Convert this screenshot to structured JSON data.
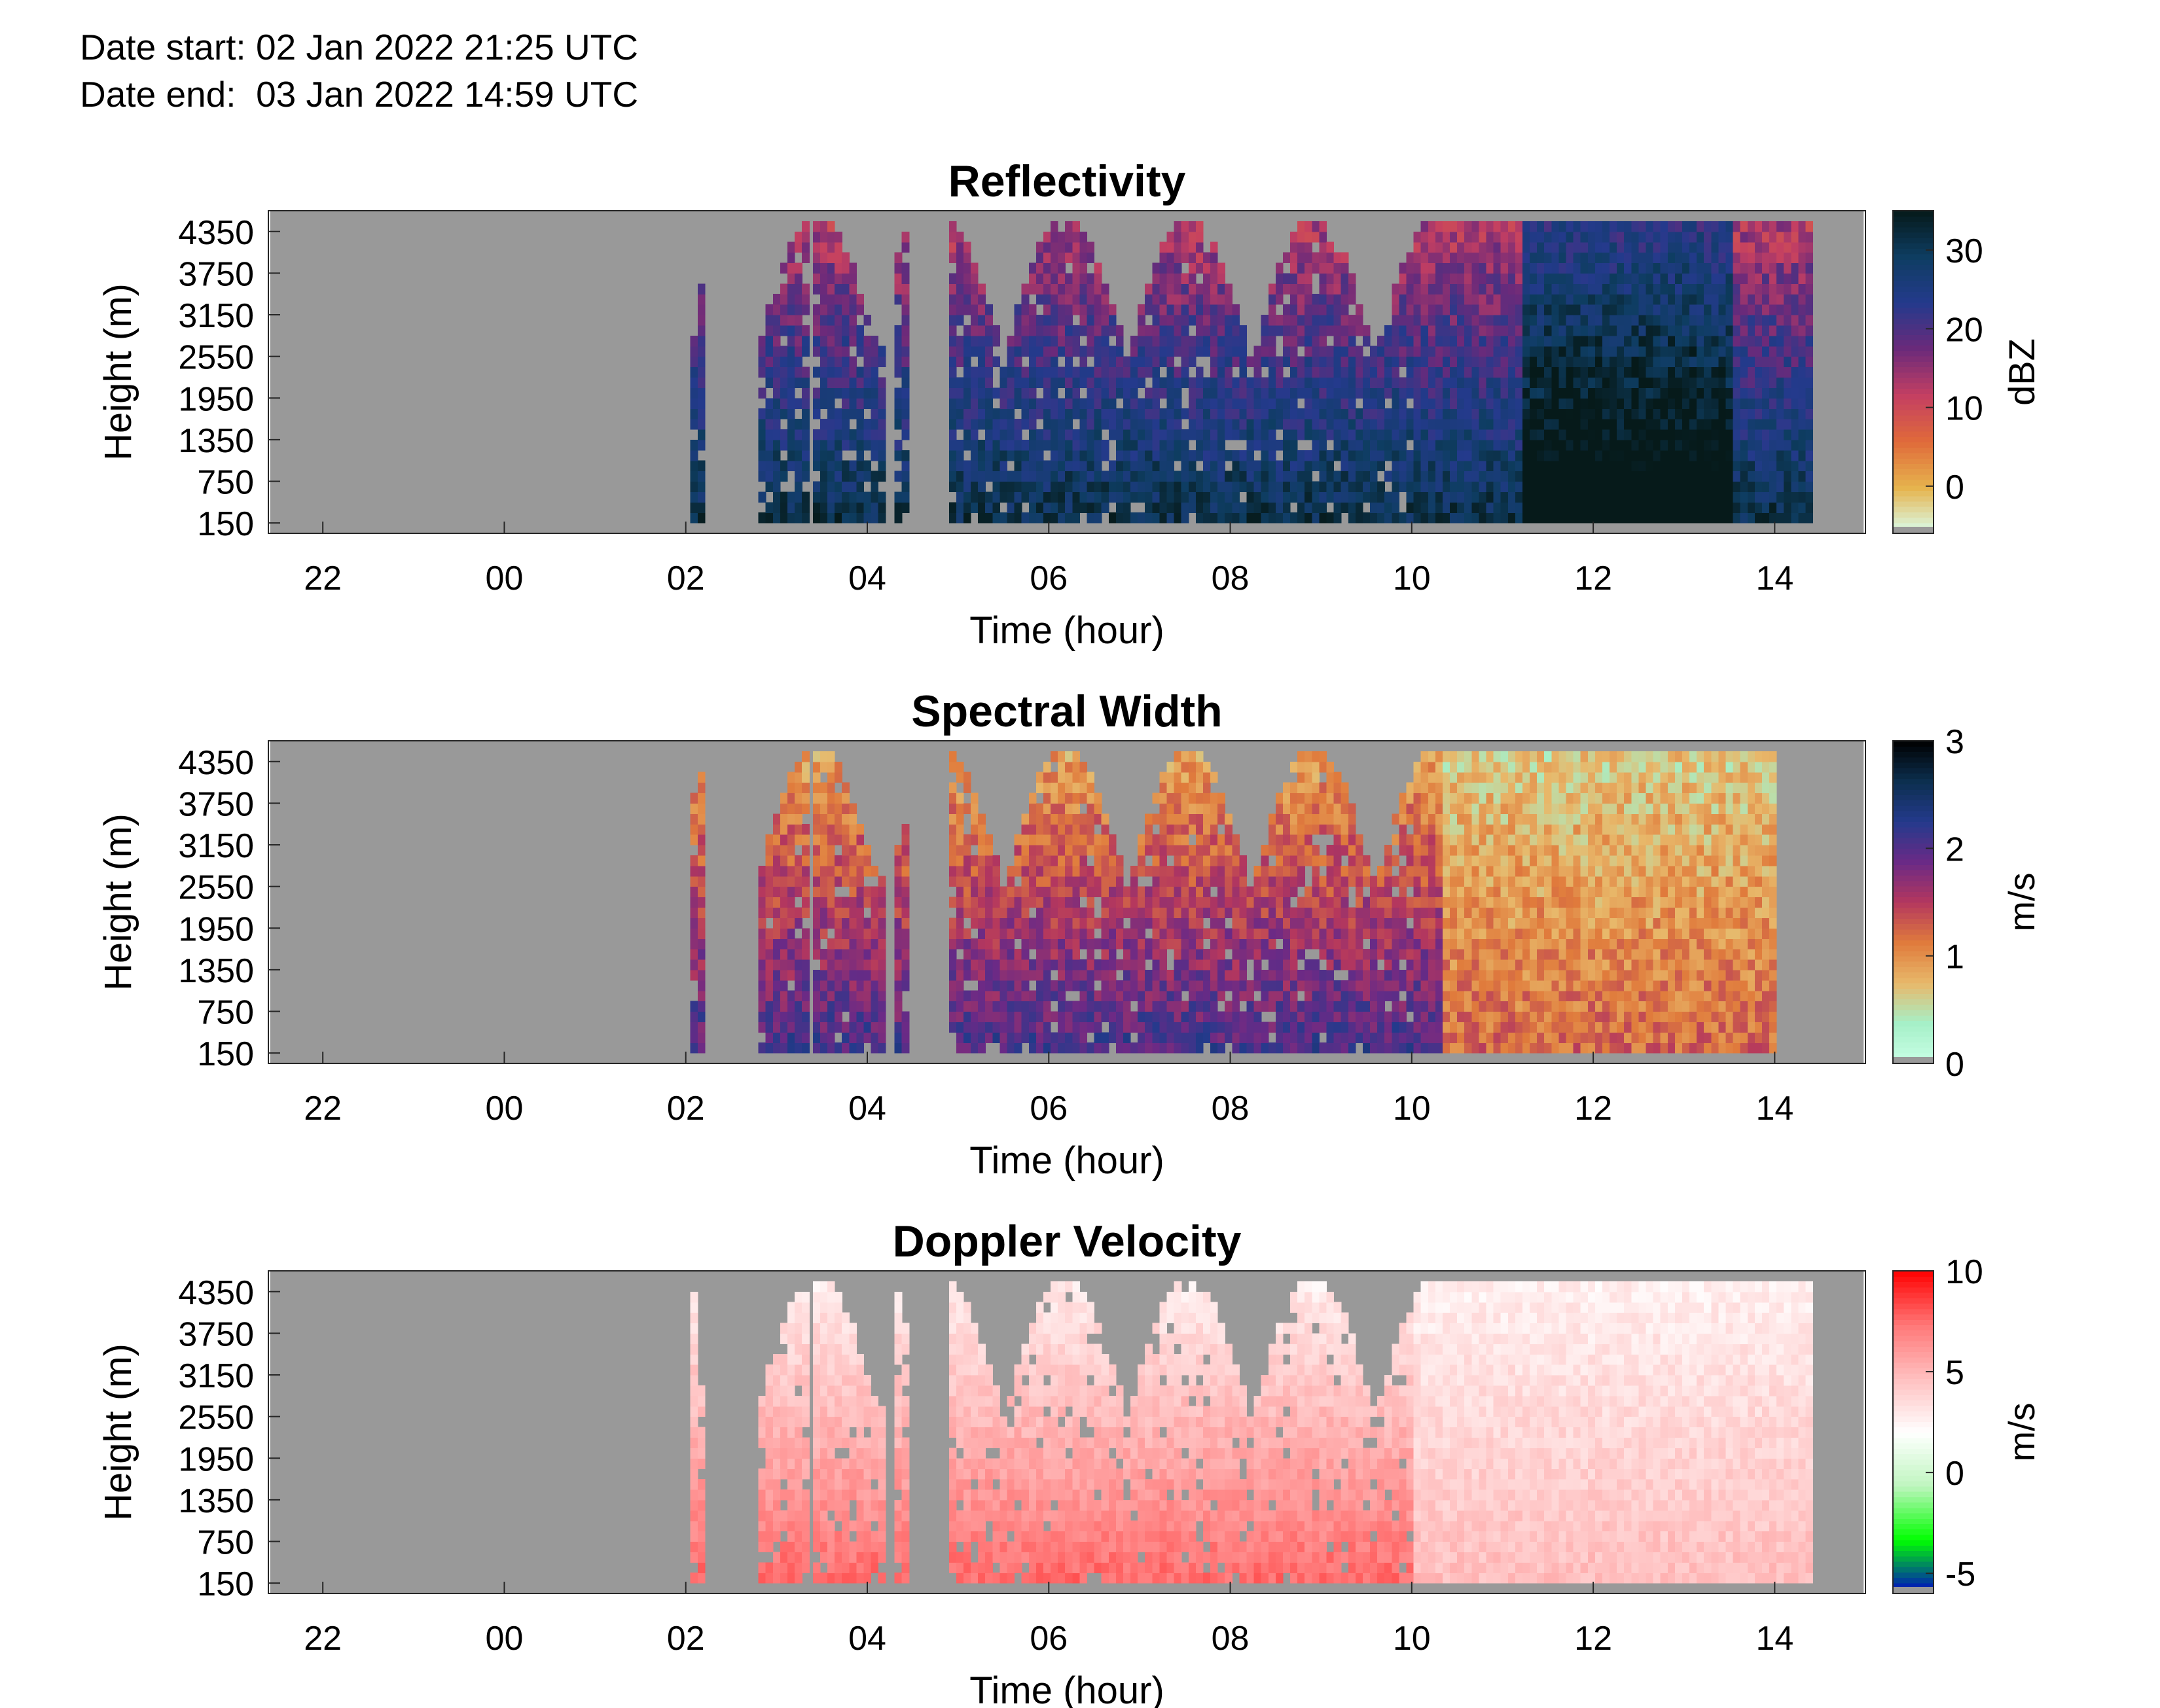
{
  "header": {
    "date_start": "Date start: 02 Jan 2022 21:25 UTC",
    "date_end": "Date end:  03 Jan 2022 14:59 UTC"
  },
  "colors": {
    "missing": "#999999",
    "axis": "#262626"
  },
  "chart_data": [
    {
      "type": "heatmap",
      "title": "Reflectivity",
      "xlabel": "Time (hour)",
      "ylabel": "Height (m)",
      "x_ticks": [
        "22",
        "00",
        "02",
        "04",
        "06",
        "08",
        "10",
        "12",
        "14"
      ],
      "x_tick_hours": [
        -2,
        0,
        2,
        4,
        6,
        8,
        10,
        12,
        14
      ],
      "xlim": [
        -2.6,
        15.0
      ],
      "y_ticks": [
        150,
        750,
        1350,
        1950,
        2550,
        3150,
        3750,
        4350
      ],
      "ylim": [
        0,
        4650
      ],
      "colorbar": {
        "label": "dBZ",
        "ticks": [
          0,
          10,
          20,
          30
        ],
        "range": [
          -6,
          35
        ],
        "colormap": [
          "#d9fff0",
          "#e6b34d",
          "#e06a3a",
          "#c43f62",
          "#6b2a7a",
          "#243a8c",
          "#0e3d62",
          "#061a1a"
        ]
      },
      "time_range_hours": [
        -2.58,
        14.98
      ],
      "valid_height_max": 4500,
      "valid_height_min": 150,
      "echo_hours": [
        [
          2.05,
          2.15
        ],
        [
          2.8,
          3.3
        ],
        [
          3.4,
          4.2
        ],
        [
          4.3,
          4.45
        ],
        [
          4.9,
          14.4
        ]
      ]
    },
    {
      "type": "heatmap",
      "title": "Spectral Width",
      "xlabel": "Time (hour)",
      "ylabel": "Height (m)",
      "x_ticks": [
        "22",
        "00",
        "02",
        "04",
        "06",
        "08",
        "10",
        "12",
        "14"
      ],
      "x_tick_hours": [
        -2,
        0,
        2,
        4,
        6,
        8,
        10,
        12,
        14
      ],
      "xlim": [
        -2.6,
        15.0
      ],
      "y_ticks": [
        150,
        750,
        1350,
        1950,
        2550,
        3150,
        3750,
        4350
      ],
      "ylim": [
        0,
        4650
      ],
      "colorbar": {
        "label": "m/s",
        "ticks": [
          0,
          1,
          2,
          3
        ],
        "range": [
          0,
          3
        ],
        "colormap": [
          "#c9ffe6",
          "#a6f0c8",
          "#e8b86a",
          "#e07b3c",
          "#b4375e",
          "#6a2a86",
          "#243a8c",
          "#0c2f4f",
          "#000000"
        ]
      },
      "time_range_hours": [
        -2.58,
        14.98
      ],
      "valid_height_max": 4500,
      "valid_height_min": 150,
      "echo_hours": [
        [
          2.05,
          2.15
        ],
        [
          2.8,
          3.3
        ],
        [
          3.4,
          4.2
        ],
        [
          4.3,
          4.45
        ],
        [
          4.9,
          14.0
        ]
      ]
    },
    {
      "type": "heatmap",
      "title": "Doppler Velocity",
      "xlabel": "Time (hour)",
      "ylabel": "Height (m)",
      "x_ticks": [
        "22",
        "00",
        "02",
        "04",
        "06",
        "08",
        "10",
        "12",
        "14"
      ],
      "x_tick_hours": [
        -2,
        0,
        2,
        4,
        6,
        8,
        10,
        12,
        14
      ],
      "xlim": [
        -2.6,
        15.0
      ],
      "y_ticks": [
        150,
        750,
        1350,
        1950,
        2550,
        3150,
        3750,
        4350
      ],
      "ylim": [
        0,
        4650
      ],
      "colorbar": {
        "label": "m/s",
        "ticks": [
          -5,
          0,
          5,
          10
        ],
        "range": [
          -6,
          10
        ],
        "colormap": [
          "#0000cc",
          "#00ff00",
          "#bff5bf",
          "#ffffff",
          "#ffc0c0",
          "#ff7777",
          "#ff0000"
        ]
      },
      "time_range_hours": [
        -2.58,
        14.98
      ],
      "valid_height_max": 4500,
      "valid_height_min": 150,
      "echo_hours": [
        [
          2.05,
          2.15
        ],
        [
          2.8,
          3.3
        ],
        [
          3.4,
          4.2
        ],
        [
          4.3,
          4.45
        ],
        [
          4.9,
          14.4
        ]
      ]
    }
  ]
}
